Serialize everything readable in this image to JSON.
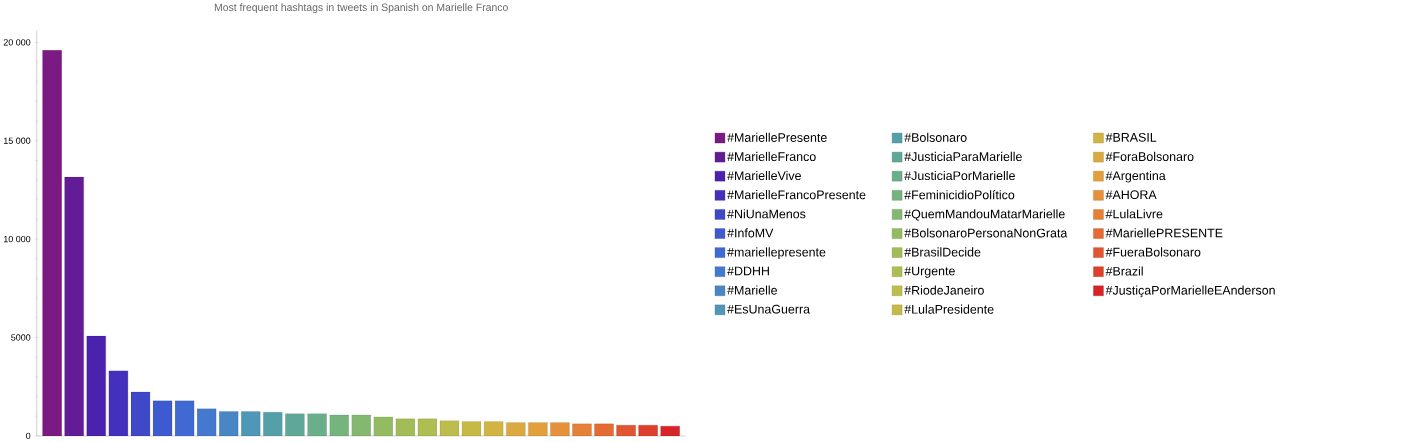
{
  "chart_data": {
    "type": "bar",
    "title": "Most frequent hashtags in tweets in Spanish on Marielle Franco",
    "categories": [
      null,
      null,
      null,
      null,
      null,
      null,
      null,
      null,
      null,
      null,
      null,
      null,
      null,
      null,
      null,
      null,
      null,
      null,
      null,
      null,
      null,
      null,
      null,
      null,
      null,
      null,
      null,
      null,
      null
    ],
    "series": [
      {
        "name": "#MariellePresente",
        "color": "#7a1a82",
        "values": [
          19600,
          null,
          null,
          null,
          null,
          null,
          null,
          null,
          null,
          null,
          null,
          null,
          null,
          null,
          null,
          null,
          null,
          null,
          null,
          null,
          null,
          null,
          null,
          null,
          null,
          null,
          null,
          null,
          null
        ]
      },
      {
        "name": "#MarielleFranco",
        "color": "#611c96",
        "values": [
          null,
          13150,
          null,
          null,
          null,
          null,
          null,
          null,
          null,
          null,
          null,
          null,
          null,
          null,
          null,
          null,
          null,
          null,
          null,
          null,
          null,
          null,
          null,
          null,
          null,
          null,
          null,
          null,
          null
        ]
      },
      {
        "name": "#MarielleVive",
        "color": "#4a22ad",
        "values": [
          null,
          null,
          5070,
          null,
          null,
          null,
          null,
          null,
          null,
          null,
          null,
          null,
          null,
          null,
          null,
          null,
          null,
          null,
          null,
          null,
          null,
          null,
          null,
          null,
          null,
          null,
          null,
          null,
          null
        ]
      },
      {
        "name": "#MarielleFrancoPresente",
        "color": "#4331bd",
        "values": [
          null,
          null,
          null,
          3310,
          null,
          null,
          null,
          null,
          null,
          null,
          null,
          null,
          null,
          null,
          null,
          null,
          null,
          null,
          null,
          null,
          null,
          null,
          null,
          null,
          null,
          null,
          null,
          null,
          null
        ]
      },
      {
        "name": "#NiUnaMenos",
        "color": "#3e48c8",
        "values": [
          null,
          null,
          null,
          null,
          2230,
          null,
          null,
          null,
          null,
          null,
          null,
          null,
          null,
          null,
          null,
          null,
          null,
          null,
          null,
          null,
          null,
          null,
          null,
          null,
          null,
          null,
          null,
          null,
          null
        ]
      },
      {
        "name": "#InfoMV",
        "color": "#3e5ad0",
        "values": [
          null,
          null,
          null,
          null,
          null,
          1780,
          null,
          null,
          null,
          null,
          null,
          null,
          null,
          null,
          null,
          null,
          null,
          null,
          null,
          null,
          null,
          null,
          null,
          null,
          null,
          null,
          null,
          null,
          null
        ]
      },
      {
        "name": "#mariellepresente",
        "color": "#4169d3",
        "values": [
          null,
          null,
          null,
          null,
          null,
          null,
          1780,
          null,
          null,
          null,
          null,
          null,
          null,
          null,
          null,
          null,
          null,
          null,
          null,
          null,
          null,
          null,
          null,
          null,
          null,
          null,
          null,
          null,
          null
        ]
      },
      {
        "name": "#DDHH",
        "color": "#4579cf",
        "values": [
          null,
          null,
          null,
          null,
          null,
          null,
          null,
          1380,
          null,
          null,
          null,
          null,
          null,
          null,
          null,
          null,
          null,
          null,
          null,
          null,
          null,
          null,
          null,
          null,
          null,
          null,
          null,
          null,
          null
        ]
      },
      {
        "name": "#Marielle",
        "color": "#4886c4",
        "values": [
          null,
          null,
          null,
          null,
          null,
          null,
          null,
          null,
          1240,
          null,
          null,
          null,
          null,
          null,
          null,
          null,
          null,
          null,
          null,
          null,
          null,
          null,
          null,
          null,
          null,
          null,
          null,
          null,
          null
        ]
      },
      {
        "name": "#EsUnaGuerra",
        "color": "#4e97b7",
        "values": [
          null,
          null,
          null,
          null,
          null,
          null,
          null,
          null,
          null,
          1240,
          null,
          null,
          null,
          null,
          null,
          null,
          null,
          null,
          null,
          null,
          null,
          null,
          null,
          null,
          null,
          null,
          null,
          null,
          null
        ]
      },
      {
        "name": "#Bolsonaro",
        "color": "#55a0a8",
        "values": [
          null,
          null,
          null,
          null,
          null,
          null,
          null,
          null,
          null,
          null,
          1200,
          null,
          null,
          null,
          null,
          null,
          null,
          null,
          null,
          null,
          null,
          null,
          null,
          null,
          null,
          null,
          null,
          null,
          null
        ]
      },
      {
        "name": "#JusticiaParaMarielle",
        "color": "#5fa898",
        "values": [
          null,
          null,
          null,
          null,
          null,
          null,
          null,
          null,
          null,
          null,
          null,
          1130,
          null,
          null,
          null,
          null,
          null,
          null,
          null,
          null,
          null,
          null,
          null,
          null,
          null,
          null,
          null,
          null,
          null
        ]
      },
      {
        "name": "#JusticiaPorMarielle",
        "color": "#6aaf8a",
        "values": [
          null,
          null,
          null,
          null,
          null,
          null,
          null,
          null,
          null,
          null,
          null,
          null,
          1130,
          null,
          null,
          null,
          null,
          null,
          null,
          null,
          null,
          null,
          null,
          null,
          null,
          null,
          null,
          null,
          null
        ]
      },
      {
        "name": "#FeminicidioPolítico",
        "color": "#75b47c",
        "values": [
          null,
          null,
          null,
          null,
          null,
          null,
          null,
          null,
          null,
          null,
          null,
          null,
          null,
          1060,
          null,
          null,
          null,
          null,
          null,
          null,
          null,
          null,
          null,
          null,
          null,
          null,
          null,
          null,
          null
        ]
      },
      {
        "name": "#QuemMandouMatarMarielle",
        "color": "#84b870",
        "values": [
          null,
          null,
          null,
          null,
          null,
          null,
          null,
          null,
          null,
          null,
          null,
          null,
          null,
          null,
          1060,
          null,
          null,
          null,
          null,
          null,
          null,
          null,
          null,
          null,
          null,
          null,
          null,
          null,
          null
        ]
      },
      {
        "name": "#BolsonaroPersonaNonGrata",
        "color": "#93bb62",
        "values": [
          null,
          null,
          null,
          null,
          null,
          null,
          null,
          null,
          null,
          null,
          null,
          null,
          null,
          null,
          null,
          960,
          null,
          null,
          null,
          null,
          null,
          null,
          null,
          null,
          null,
          null,
          null,
          null,
          null
        ]
      },
      {
        "name": "#BrasilDecide",
        "color": "#a2bd58",
        "values": [
          null,
          null,
          null,
          null,
          null,
          null,
          null,
          null,
          null,
          null,
          null,
          null,
          null,
          null,
          null,
          null,
          870,
          null,
          null,
          null,
          null,
          null,
          null,
          null,
          null,
          null,
          null,
          null,
          null
        ]
      },
      {
        "name": "#Urgente",
        "color": "#afbe52",
        "values": [
          null,
          null,
          null,
          null,
          null,
          null,
          null,
          null,
          null,
          null,
          null,
          null,
          null,
          null,
          null,
          null,
          null,
          870,
          null,
          null,
          null,
          null,
          null,
          null,
          null,
          null,
          null,
          null,
          null
        ]
      },
      {
        "name": "#RiodeJaneiro",
        "color": "#bcbd4c",
        "values": [
          null,
          null,
          null,
          null,
          null,
          null,
          null,
          null,
          null,
          null,
          null,
          null,
          null,
          null,
          null,
          null,
          null,
          null,
          770,
          null,
          null,
          null,
          null,
          null,
          null,
          null,
          null,
          null,
          null
        ]
      },
      {
        "name": "#LulaPresidente",
        "color": "#c6b946",
        "values": [
          null,
          null,
          null,
          null,
          null,
          null,
          null,
          null,
          null,
          null,
          null,
          null,
          null,
          null,
          null,
          null,
          null,
          null,
          null,
          730,
          null,
          null,
          null,
          null,
          null,
          null,
          null,
          null,
          null
        ]
      },
      {
        "name": "#BRASIL",
        "color": "#d1b442",
        "values": [
          null,
          null,
          null,
          null,
          null,
          null,
          null,
          null,
          null,
          null,
          null,
          null,
          null,
          null,
          null,
          null,
          null,
          null,
          null,
          null,
          730,
          null,
          null,
          null,
          null,
          null,
          null,
          null,
          null
        ]
      },
      {
        "name": "#ForaBolsonaro",
        "color": "#dba93f",
        "values": [
          null,
          null,
          null,
          null,
          null,
          null,
          null,
          null,
          null,
          null,
          null,
          null,
          null,
          null,
          null,
          null,
          null,
          null,
          null,
          null,
          null,
          680,
          null,
          null,
          null,
          null,
          null,
          null,
          null
        ]
      },
      {
        "name": "#Argentina",
        "color": "#e29f3c",
        "values": [
          null,
          null,
          null,
          null,
          null,
          null,
          null,
          null,
          null,
          null,
          null,
          null,
          null,
          null,
          null,
          null,
          null,
          null,
          null,
          null,
          null,
          null,
          680,
          null,
          null,
          null,
          null,
          null,
          null
        ]
      },
      {
        "name": "#AHORA",
        "color": "#e5913a",
        "values": [
          null,
          null,
          null,
          null,
          null,
          null,
          null,
          null,
          null,
          null,
          null,
          null,
          null,
          null,
          null,
          null,
          null,
          null,
          null,
          null,
          null,
          null,
          null,
          680,
          null,
          null,
          null,
          null,
          null
        ]
      },
      {
        "name": "#LulaLivre",
        "color": "#e68037",
        "values": [
          null,
          null,
          null,
          null,
          null,
          null,
          null,
          null,
          null,
          null,
          null,
          null,
          null,
          null,
          null,
          null,
          null,
          null,
          null,
          null,
          null,
          null,
          null,
          null,
          610,
          null,
          null,
          null,
          null
        ]
      },
      {
        "name": "#MariellePRESENTE",
        "color": "#e56b34",
        "values": [
          null,
          null,
          null,
          null,
          null,
          null,
          null,
          null,
          null,
          null,
          null,
          null,
          null,
          null,
          null,
          null,
          null,
          null,
          null,
          null,
          null,
          null,
          null,
          null,
          null,
          610,
          null,
          null,
          null
        ]
      },
      {
        "name": "#FueraBolsonaro",
        "color": "#e15530",
        "values": [
          null,
          null,
          null,
          null,
          null,
          null,
          null,
          null,
          null,
          null,
          null,
          null,
          null,
          null,
          null,
          null,
          null,
          null,
          null,
          null,
          null,
          null,
          null,
          null,
          null,
          null,
          540,
          null,
          null
        ]
      },
      {
        "name": "#Brazil",
        "color": "#dd3f2c",
        "values": [
          null,
          null,
          null,
          null,
          null,
          null,
          null,
          null,
          null,
          null,
          null,
          null,
          null,
          null,
          null,
          null,
          null,
          null,
          null,
          null,
          null,
          null,
          null,
          null,
          null,
          null,
          null,
          540,
          null
        ]
      },
      {
        "name": "#JustiçaPorMarielleEAnderson",
        "color": "#d92427",
        "values": [
          null,
          null,
          null,
          null,
          null,
          null,
          null,
          null,
          null,
          null,
          null,
          null,
          null,
          null,
          null,
          null,
          null,
          null,
          null,
          null,
          null,
          null,
          null,
          null,
          null,
          null,
          null,
          null,
          490
        ]
      }
    ],
    "ylim": [
      0,
      20600
    ],
    "yticks": [
      0,
      5000,
      {
        "value": 10000,
        "label": "10 000"
      },
      {
        "value": 15000,
        "label": "15 000"
      },
      {
        "value": 20000,
        "label": "20 000"
      }
    ],
    "legend": "right",
    "tick_labels": "y",
    "grid": false
  }
}
